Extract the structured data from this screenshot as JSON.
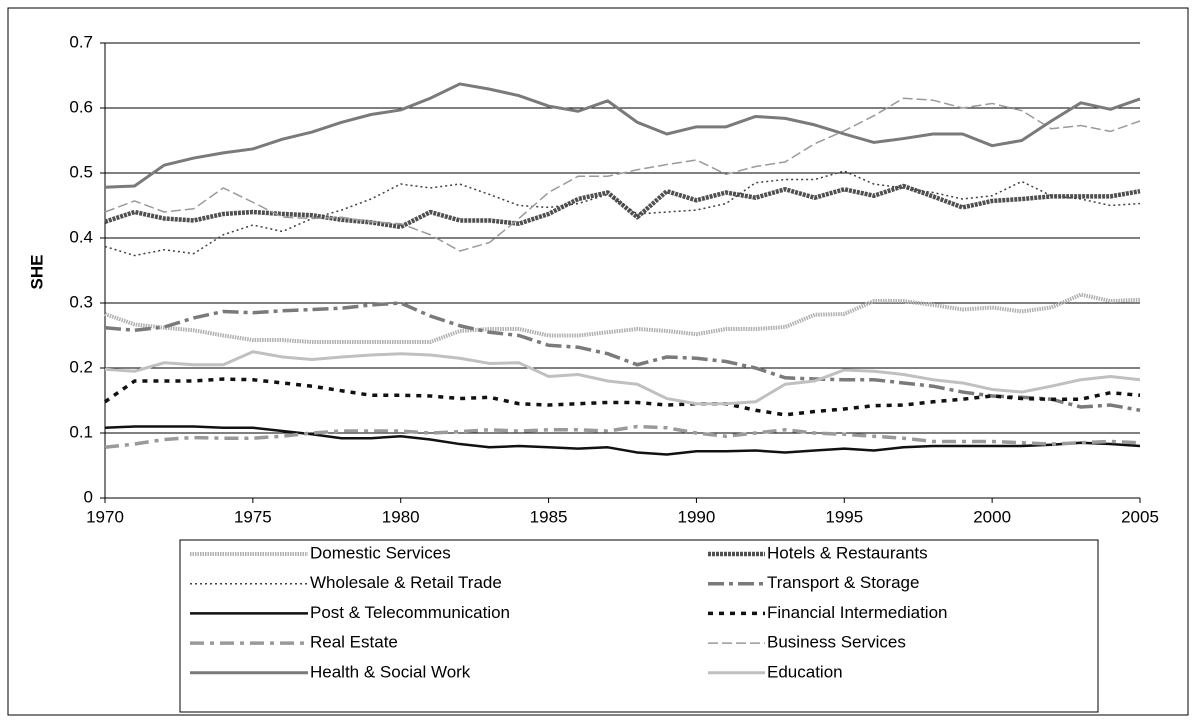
{
  "chart_data": {
    "type": "line",
    "y_label": "SHE",
    "x": [
      1970,
      1971,
      1972,
      1973,
      1974,
      1975,
      1976,
      1977,
      1978,
      1979,
      1980,
      1981,
      1982,
      1983,
      1984,
      1985,
      1986,
      1987,
      1988,
      1989,
      1990,
      1991,
      1992,
      1993,
      1994,
      1995,
      1996,
      1997,
      1998,
      1999,
      2000,
      2001,
      2002,
      2003,
      2004,
      2005
    ],
    "xlim": [
      1970,
      2005
    ],
    "xticks": [
      1970,
      1975,
      1980,
      1985,
      1990,
      1995,
      2000,
      2005
    ],
    "ylim": [
      0,
      0.7
    ],
    "yticks": [
      0,
      0.1,
      0.2,
      0.3,
      0.4,
      0.5,
      0.6,
      0.7
    ],
    "grid": true,
    "series": [
      {
        "name": "Domestic Services",
        "color": "#b0b0b0",
        "values": [
          0.283,
          0.267,
          0.262,
          0.258,
          0.25,
          0.243,
          0.243,
          0.24,
          0.24,
          0.24,
          0.24,
          0.24,
          0.257,
          0.26,
          0.26,
          0.25,
          0.25,
          0.255,
          0.26,
          0.257,
          0.252,
          0.26,
          0.26,
          0.263,
          0.282,
          0.283,
          0.303,
          0.303,
          0.297,
          0.29,
          0.293,
          0.287,
          0.293,
          0.313,
          0.303,
          0.305
        ]
      },
      {
        "name": "Hotels & Restaurants",
        "color": "#505050",
        "values": [
          0.425,
          0.44,
          0.43,
          0.427,
          0.437,
          0.44,
          0.437,
          0.435,
          0.428,
          0.424,
          0.417,
          0.44,
          0.427,
          0.427,
          0.422,
          0.437,
          0.46,
          0.47,
          0.432,
          0.472,
          0.458,
          0.47,
          0.462,
          0.475,
          0.462,
          0.475,
          0.465,
          0.48,
          0.464,
          0.447,
          0.457,
          0.46,
          0.464,
          0.464,
          0.464,
          0.472
        ]
      },
      {
        "name": "Wholesale & Retail Trade",
        "color": "#404040",
        "values": [
          0.387,
          0.373,
          0.382,
          0.376,
          0.405,
          0.42,
          0.41,
          0.43,
          0.443,
          0.46,
          0.483,
          0.477,
          0.483,
          0.467,
          0.45,
          0.447,
          0.453,
          0.467,
          0.437,
          0.44,
          0.443,
          0.453,
          0.485,
          0.49,
          0.49,
          0.503,
          0.483,
          0.477,
          0.47,
          0.46,
          0.465,
          0.487,
          0.465,
          0.46,
          0.45,
          0.453
        ]
      },
      {
        "name": "Transport & Storage",
        "color": "#7a7a7a",
        "values": [
          0.262,
          0.258,
          0.263,
          0.277,
          0.287,
          0.285,
          0.288,
          0.29,
          0.292,
          0.297,
          0.3,
          0.28,
          0.265,
          0.255,
          0.25,
          0.235,
          0.232,
          0.222,
          0.205,
          0.217,
          0.215,
          0.21,
          0.2,
          0.185,
          0.183,
          0.182,
          0.182,
          0.177,
          0.172,
          0.163,
          0.157,
          0.155,
          0.152,
          0.14,
          0.143,
          0.135
        ]
      },
      {
        "name": "Post & Telecommunication",
        "color": "#111111",
        "values": [
          0.108,
          0.11,
          0.11,
          0.11,
          0.108,
          0.108,
          0.103,
          0.098,
          0.092,
          0.092,
          0.095,
          0.09,
          0.083,
          0.078,
          0.08,
          0.078,
          0.076,
          0.078,
          0.07,
          0.067,
          0.072,
          0.072,
          0.073,
          0.07,
          0.073,
          0.076,
          0.073,
          0.078,
          0.08,
          0.08,
          0.08,
          0.08,
          0.082,
          0.085,
          0.083,
          0.08
        ]
      },
      {
        "name": "Financial Intermediation",
        "color": "#111111",
        "values": [
          0.148,
          0.18,
          0.18,
          0.18,
          0.183,
          0.182,
          0.177,
          0.172,
          0.165,
          0.158,
          0.158,
          0.157,
          0.153,
          0.155,
          0.145,
          0.143,
          0.145,
          0.147,
          0.147,
          0.143,
          0.145,
          0.145,
          0.135,
          0.128,
          0.133,
          0.137,
          0.142,
          0.143,
          0.148,
          0.152,
          0.157,
          0.153,
          0.152,
          0.152,
          0.162,
          0.158
        ]
      },
      {
        "name": "Real Estate",
        "color": "#9a9a9a",
        "values": [
          0.078,
          0.083,
          0.09,
          0.093,
          0.092,
          0.092,
          0.095,
          0.1,
          0.103,
          0.103,
          0.103,
          0.1,
          0.102,
          0.105,
          0.103,
          0.105,
          0.105,
          0.103,
          0.11,
          0.108,
          0.1,
          0.095,
          0.1,
          0.105,
          0.1,
          0.098,
          0.095,
          0.092,
          0.087,
          0.087,
          0.087,
          0.085,
          0.083,
          0.085,
          0.087,
          0.085
        ]
      },
      {
        "name": "Business Services",
        "color": "#9a9a9a",
        "values": [
          0.44,
          0.457,
          0.44,
          0.445,
          0.477,
          0.455,
          0.432,
          0.43,
          0.432,
          0.425,
          0.422,
          0.405,
          0.38,
          0.393,
          0.43,
          0.47,
          0.495,
          0.495,
          0.505,
          0.513,
          0.52,
          0.498,
          0.51,
          0.517,
          0.545,
          0.565,
          0.588,
          0.615,
          0.612,
          0.6,
          0.607,
          0.596,
          0.568,
          0.573,
          0.564,
          0.58
        ]
      },
      {
        "name": "Health & Social Work",
        "color": "#7a7a7a",
        "values": [
          0.478,
          0.48,
          0.512,
          0.523,
          0.531,
          0.537,
          0.552,
          0.563,
          0.578,
          0.59,
          0.597,
          0.615,
          0.637,
          0.629,
          0.619,
          0.603,
          0.595,
          0.611,
          0.578,
          0.56,
          0.571,
          0.571,
          0.587,
          0.584,
          0.574,
          0.56,
          0.547,
          0.553,
          0.56,
          0.56,
          0.542,
          0.55,
          0.58,
          0.608,
          0.598,
          0.614
        ]
      },
      {
        "name": "Education",
        "color": "#c0c0c0",
        "values": [
          0.198,
          0.195,
          0.208,
          0.205,
          0.205,
          0.225,
          0.217,
          0.213,
          0.217,
          0.22,
          0.222,
          0.22,
          0.215,
          0.207,
          0.208,
          0.187,
          0.19,
          0.18,
          0.175,
          0.153,
          0.145,
          0.145,
          0.148,
          0.175,
          0.18,
          0.197,
          0.195,
          0.19,
          0.182,
          0.177,
          0.167,
          0.163,
          0.172,
          0.182,
          0.187,
          0.182
        ]
      }
    ]
  }
}
